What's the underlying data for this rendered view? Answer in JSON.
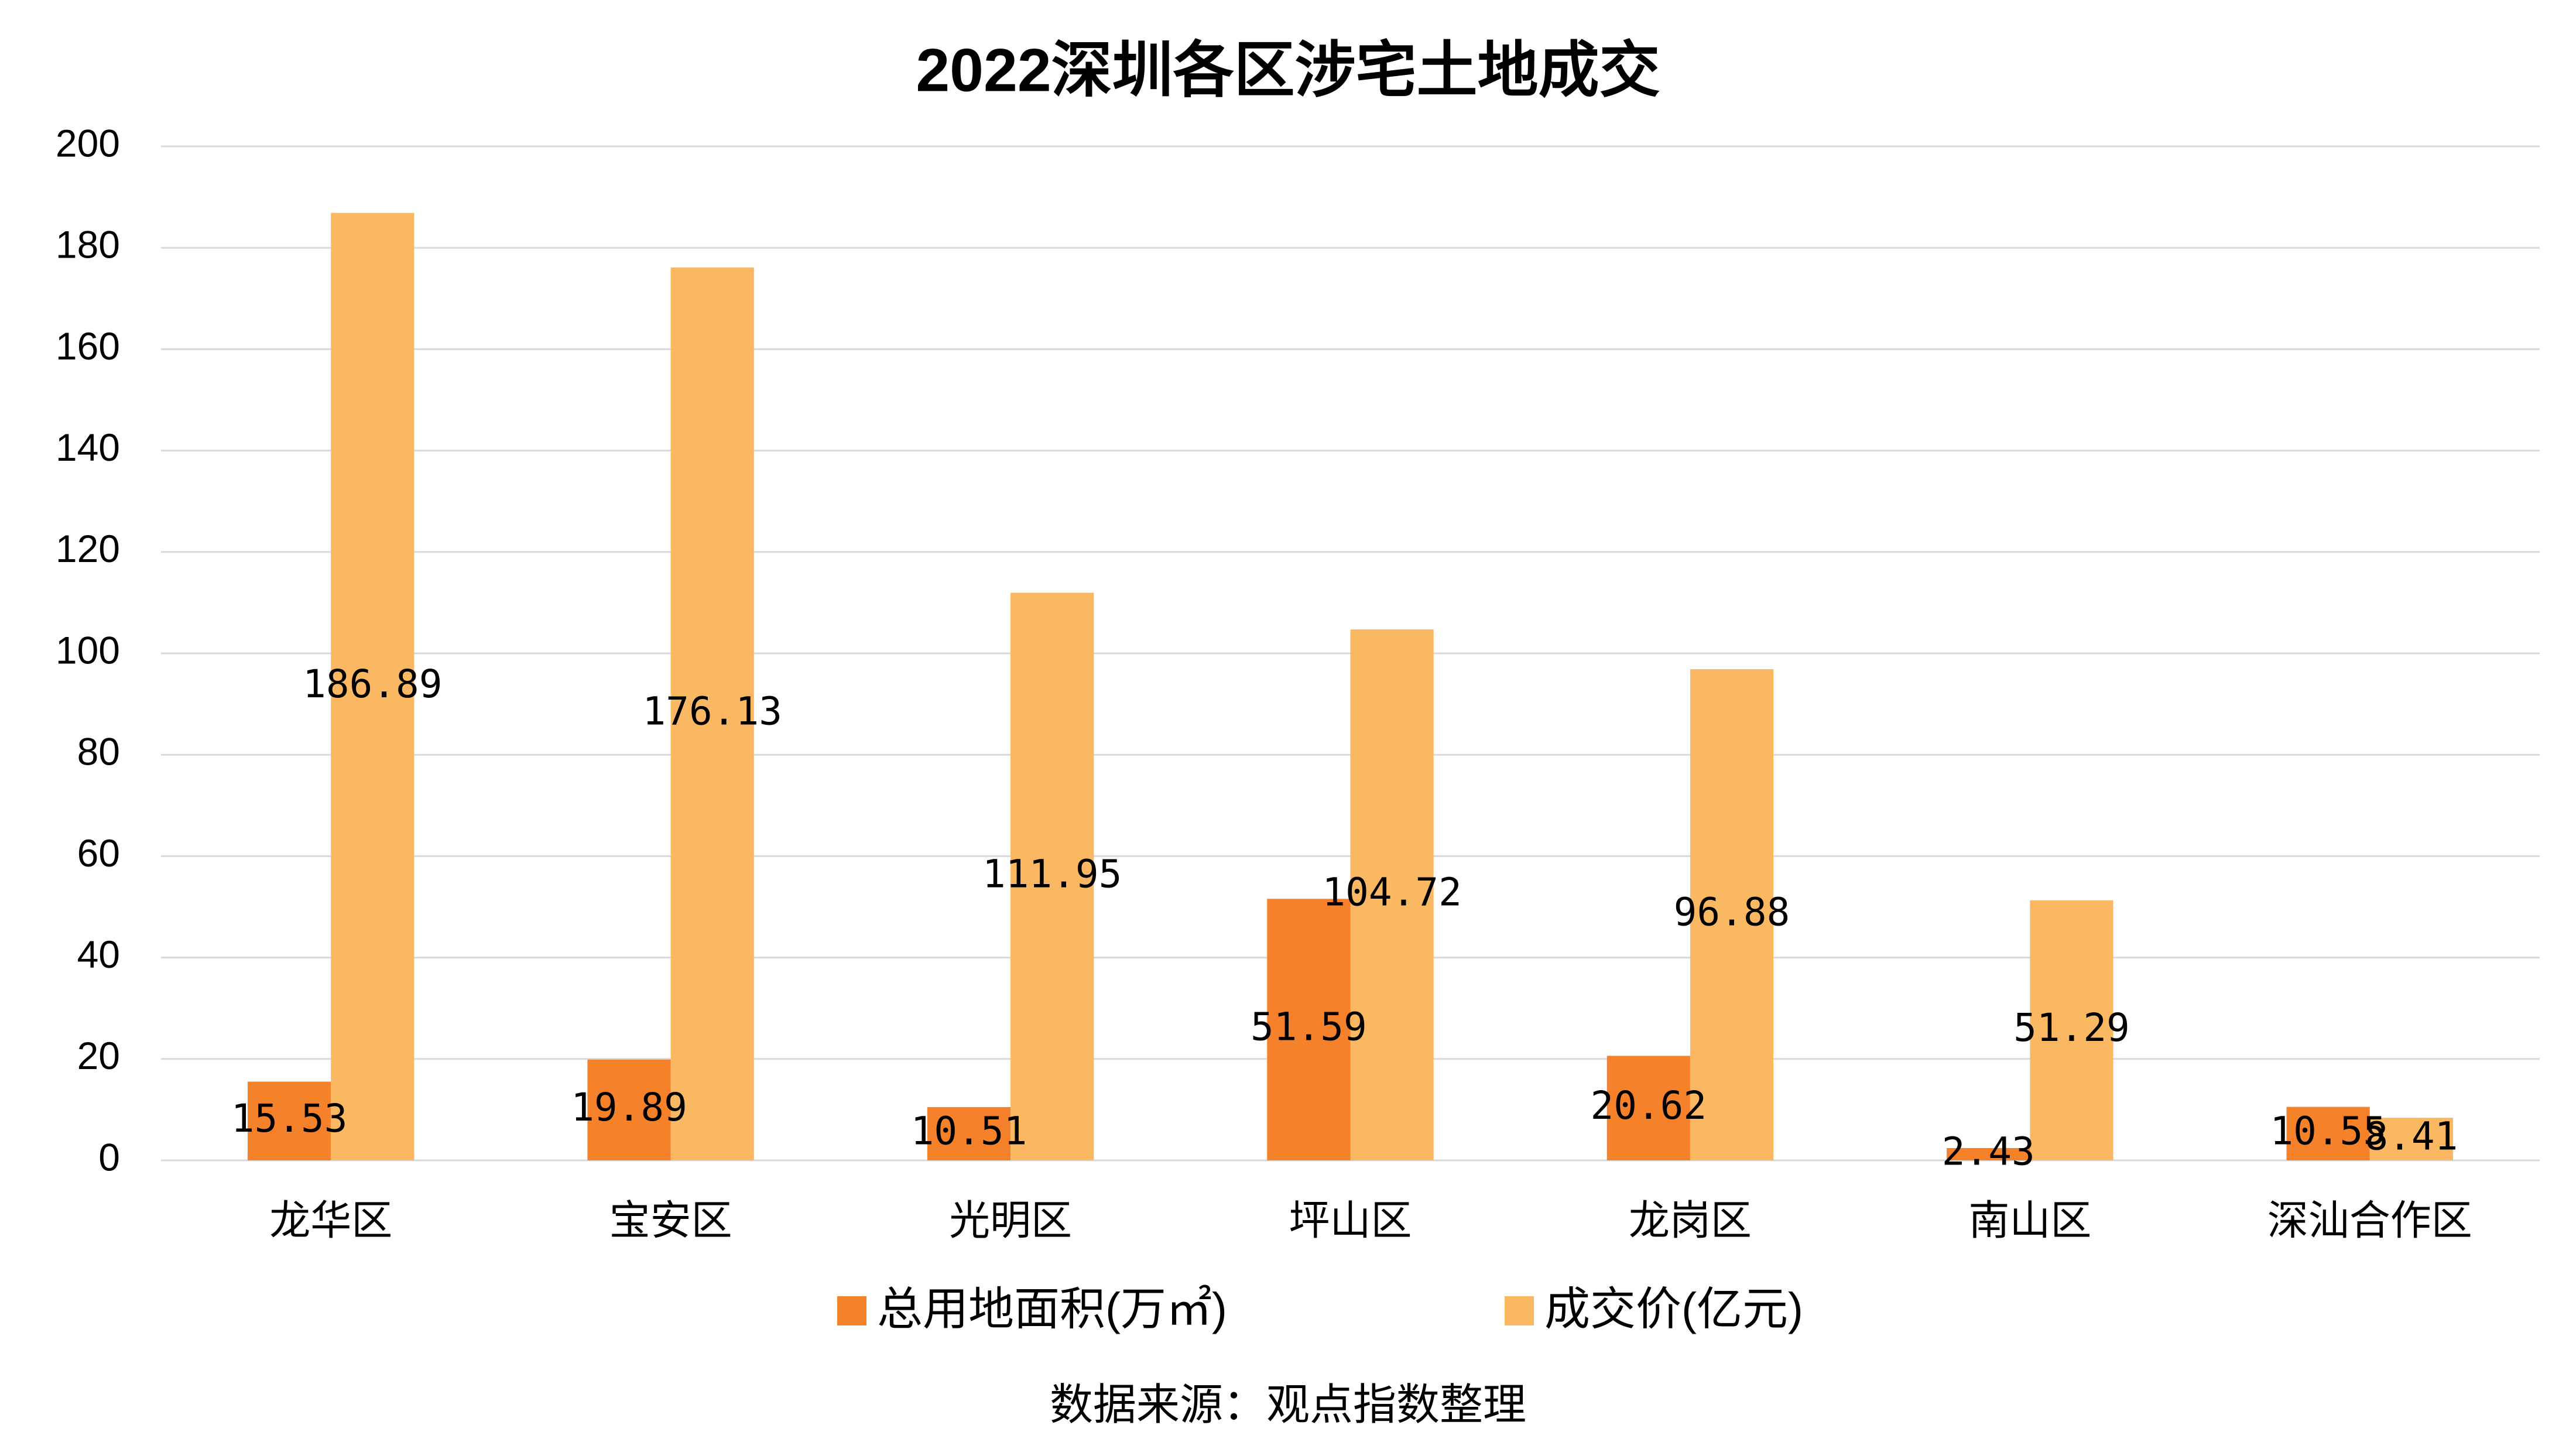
{
  "chart_data": {
    "type": "bar",
    "title": "2022深圳各区涉宅土地成交",
    "categories": [
      "龙华区",
      "宝安区",
      "光明区",
      "坪山区",
      "龙岗区",
      "南山区",
      "深汕合作区"
    ],
    "series": [
      {
        "name": "总用地面积(万㎡)",
        "color": "#f5822a",
        "values": [
          15.53,
          19.89,
          10.51,
          51.59,
          20.62,
          2.43,
          10.55
        ]
      },
      {
        "name": "成交价(亿元)",
        "color": "#fbb862",
        "values": [
          186.89,
          176.13,
          111.95,
          104.72,
          96.88,
          51.29,
          8.41
        ]
      }
    ],
    "ylim": [
      0,
      200
    ],
    "yticks": [
      0,
      20,
      40,
      60,
      80,
      100,
      120,
      140,
      160,
      180,
      200
    ],
    "grid": true,
    "source": "数据来源：观点指数整理"
  }
}
